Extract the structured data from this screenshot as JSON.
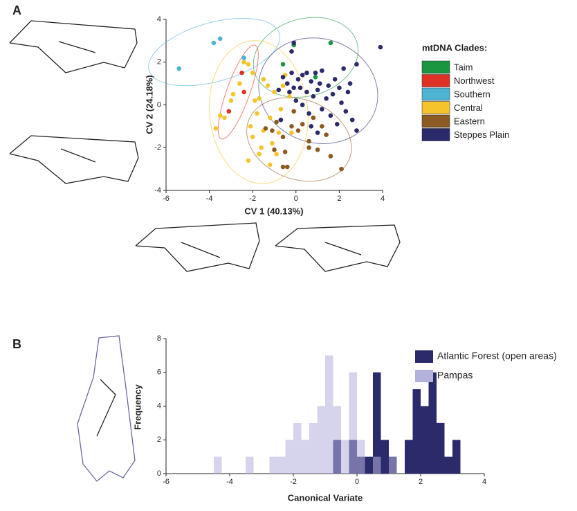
{
  "chart_data": [
    {
      "type": "scatter",
      "panel": "A",
      "xlabel": "CV 1 (40.13%)",
      "ylabel": "CV 2 (24.18%)",
      "xlim": [
        -6,
        4
      ],
      "ylim": [
        -4,
        4
      ],
      "xticks": [
        -6,
        -4,
        -2,
        0,
        2,
        4
      ],
      "yticks": [
        -4,
        -2,
        0,
        2,
        4
      ],
      "legend_title": "mtDNA Clades:",
      "series": [
        {
          "name": "Taim",
          "color": "#1a9641",
          "x": [
            -0.1,
            1.6,
            -0.6,
            0.9
          ],
          "y": [
            2.8,
            2.9,
            1.9,
            1.3
          ]
        },
        {
          "name": "Northwest",
          "color": "#e03127",
          "x": [
            -2.5,
            -2.4,
            -3.1
          ],
          "y": [
            1.5,
            0.6,
            -0.3
          ]
        },
        {
          "name": "Southern",
          "color": "#4eb3d3",
          "x": [
            -5.4,
            -3.8,
            -3.5,
            -2.4
          ],
          "y": [
            1.7,
            2.9,
            3.1,
            2.2
          ]
        },
        {
          "name": "Central",
          "color": "#f5c42c",
          "x": [
            -3.7,
            -3.5,
            -3.3,
            -3.0,
            -2.9,
            -2.6,
            -2.4,
            -2.2,
            -2.0,
            -1.9,
            -1.7,
            -1.5,
            -1.3,
            -1.8,
            -2.1,
            -2.0,
            -1.6,
            -1.5,
            -1.2,
            -1.0,
            -0.8,
            -0.7,
            -1.1,
            -0.9,
            -0.6,
            -0.3,
            -0.2,
            -1.7,
            -1.2,
            -0.5,
            -2.2
          ],
          "y": [
            -1.1,
            -0.5,
            -0.6,
            0.2,
            0.5,
            1.0,
            2.0,
            1.9,
            1.5,
            0.2,
            0.3,
            1.2,
            0.9,
            -0.4,
            -1.0,
            -1.5,
            -2.0,
            -1.2,
            -0.6,
            0.6,
            -1.3,
            -0.2,
            -1.8,
            -2.3,
            0.9,
            0.4,
            -1.3,
            -2.3,
            -2.8,
            1.4,
            -2.6
          ]
        },
        {
          "name": "Eastern",
          "color": "#8c5a23",
          "x": [
            -1.4,
            -1.1,
            -0.9,
            -0.6,
            -0.5,
            -0.4,
            -0.6,
            -0.2,
            0.1,
            0.3,
            0.6,
            0.6,
            1.0,
            1.4,
            1.6,
            2.1,
            0.8,
            -0.1,
            1.2,
            -1.0
          ],
          "y": [
            -1.1,
            -1.2,
            -0.8,
            -1.5,
            -2.2,
            -2.9,
            -2.9,
            -1.0,
            -1.2,
            -0.9,
            -1.7,
            -2.0,
            -2.1,
            -1.4,
            -2.4,
            -3.0,
            -0.6,
            -0.3,
            -1.0,
            -2.1
          ]
        },
        {
          "name": "Steppes Plain",
          "color": "#2b2a6b",
          "x": [
            -0.8,
            -0.6,
            -0.4,
            -0.3,
            -0.2,
            -0.1,
            0.0,
            0.1,
            0.2,
            0.3,
            0.3,
            0.5,
            0.5,
            0.6,
            0.7,
            0.8,
            0.9,
            1.0,
            1.1,
            1.2,
            1.2,
            1.4,
            1.5,
            1.6,
            1.7,
            1.8,
            1.9,
            2.0,
            2.1,
            2.2,
            2.3,
            2.4,
            2.5,
            2.6,
            2.8,
            2.8,
            -0.2,
            -0.1,
            0.7,
            3.9,
            -0.7,
            1.0
          ],
          "y": [
            0.7,
            1.3,
            1.0,
            0.6,
            1.5,
            0.8,
            0.2,
            1.2,
            0.8,
            1.4,
            0.0,
            0.6,
            1.5,
            -0.4,
            1.1,
            0.4,
            1.5,
            0.7,
            1.0,
            1.6,
            -0.2,
            0.3,
            0.9,
            -0.5,
            0.5,
            1.2,
            -0.9,
            0.8,
            0.1,
            1.7,
            -0.3,
            0.6,
            1.0,
            -0.7,
            1.9,
            -1.2,
            2.5,
            2.9,
            -1.0,
            2.7,
            -0.7,
            -1.3
          ]
        }
      ]
    },
    {
      "type": "histogram",
      "panel": "B",
      "xlabel": "Canonical Variate",
      "ylabel": "Frequency",
      "xlim": [
        -6,
        4
      ],
      "ylim": [
        0,
        8
      ],
      "xticks": [
        -6,
        -4,
        -2,
        0,
        2,
        4
      ],
      "yticks": [
        0,
        2,
        4,
        6,
        8
      ],
      "bins": [
        -4.5,
        -4.25,
        -4.0,
        -3.75,
        -3.5,
        -3.25,
        -3.0,
        -2.75,
        -2.5,
        -2.25,
        -2.0,
        -1.75,
        -1.5,
        -1.25,
        -1.0,
        -0.75,
        -0.5,
        -0.25,
        0.0,
        0.25,
        0.5,
        0.75,
        1.0,
        1.25,
        1.5,
        1.75,
        2.0,
        2.25,
        2.5,
        2.75,
        3.0,
        3.25
      ],
      "series": [
        {
          "name": "Atlantic Forest (open areas)",
          "color": "#2b2a6b",
          "values": [
            0,
            0,
            0,
            0,
            0,
            0,
            0,
            0,
            0,
            0,
            0,
            0,
            0,
            0,
            0,
            2,
            0,
            2,
            1,
            1,
            6,
            2,
            1,
            0,
            2,
            5,
            4,
            6,
            3,
            1,
            2
          ]
        },
        {
          "name": "Pampas",
          "color": "#b4b1dc",
          "values": [
            1,
            0,
            0,
            0,
            1,
            0,
            0,
            1,
            1,
            2,
            3,
            2,
            3,
            4,
            7,
            4,
            2,
            6,
            2,
            0,
            1,
            0,
            1,
            0,
            0,
            0,
            0,
            0,
            0,
            0,
            0
          ]
        }
      ]
    }
  ]
}
